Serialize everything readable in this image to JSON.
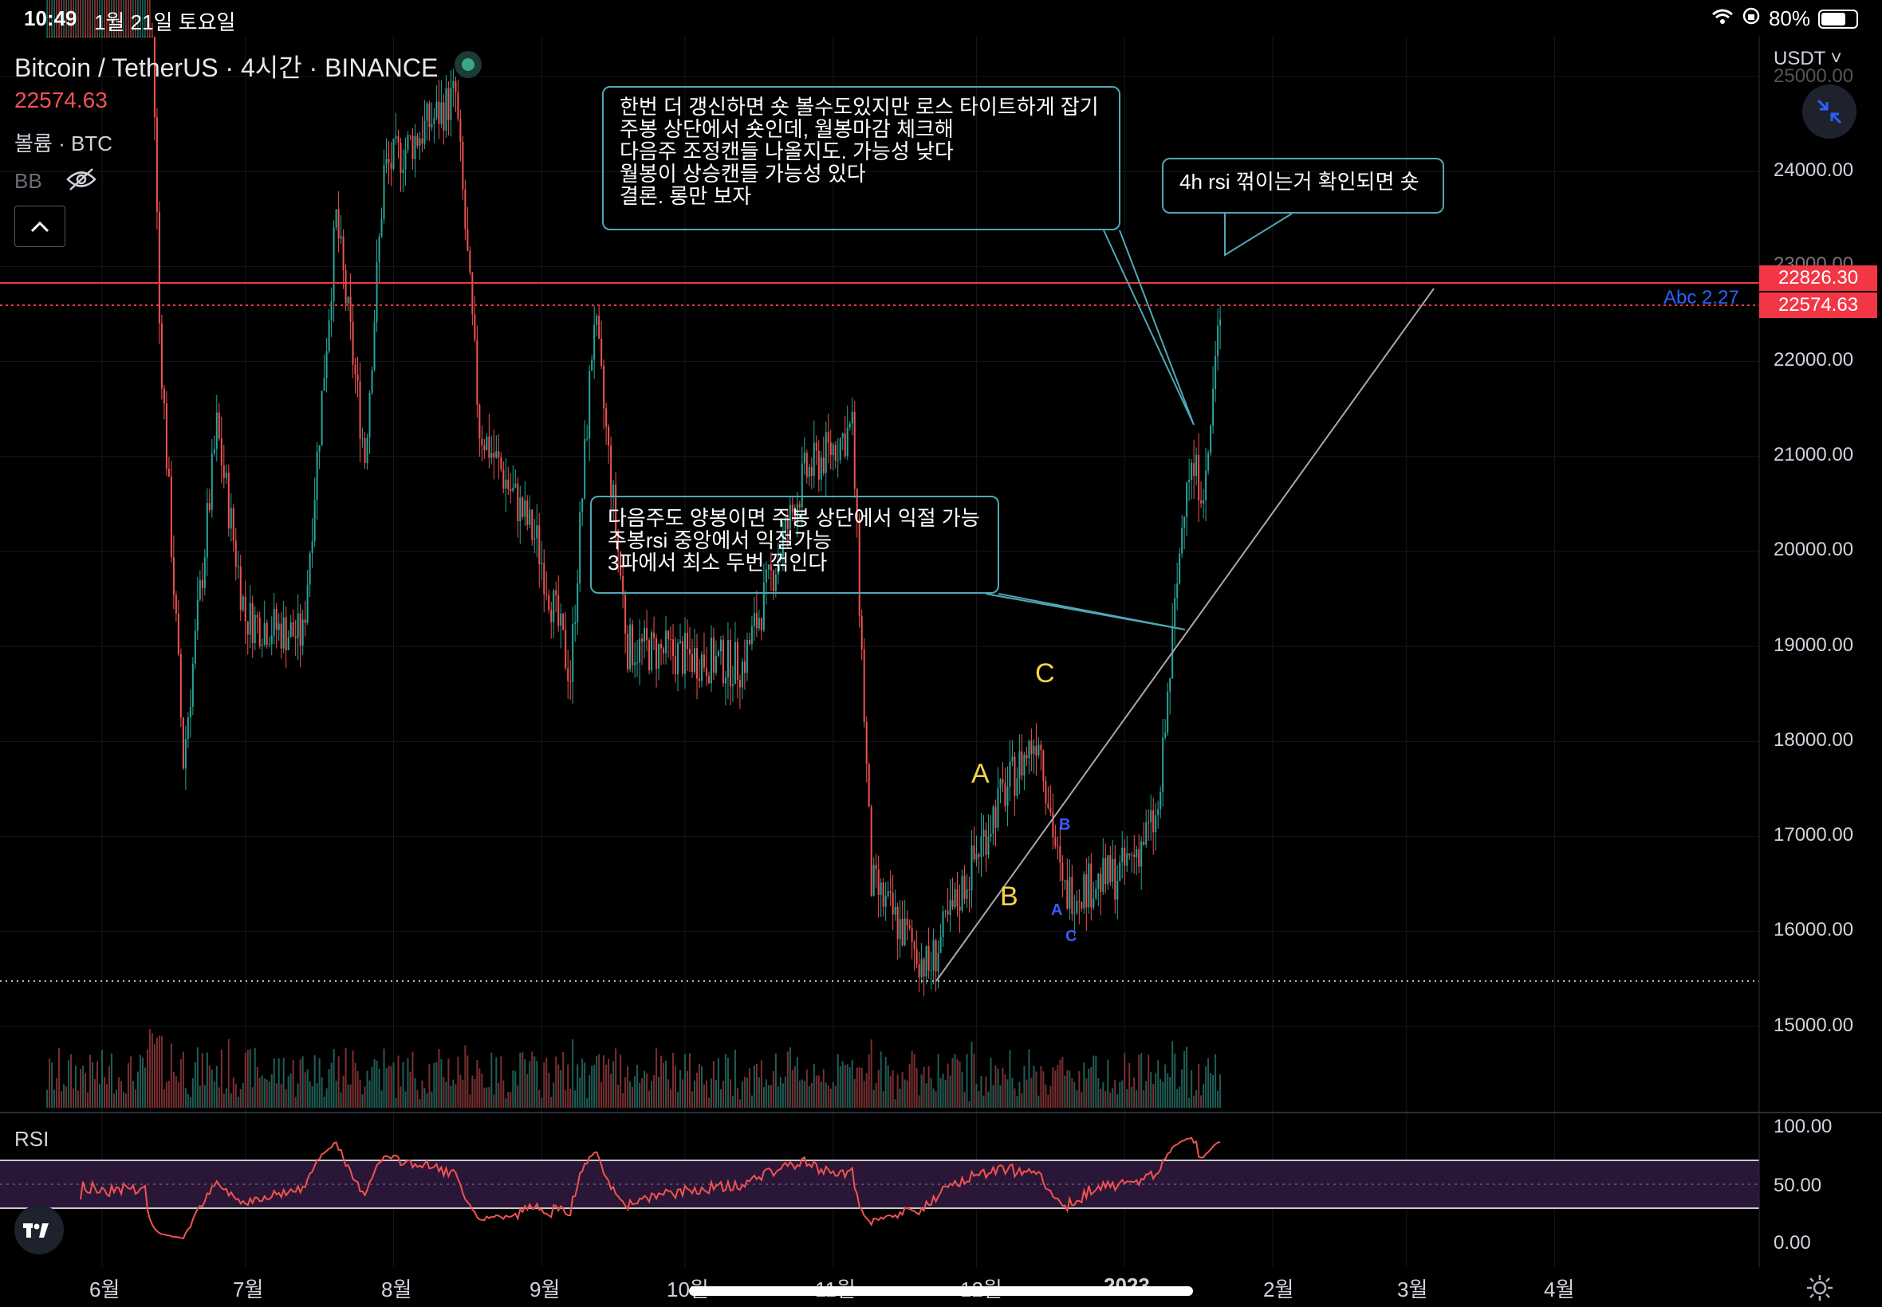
{
  "status_bar": {
    "time": "10:49",
    "date": "1월 21일 토요일",
    "battery": "80%",
    "battery_level": 0.8
  },
  "legend": {
    "symbol": "Bitcoin / TetherUS · 4시간 · BINANCE",
    "last_price": "22574.63",
    "volume_indicator": "볼륨 · BTC",
    "bb_indicator": "BB"
  },
  "header": {
    "currency": "USDT"
  },
  "price_axis": {
    "ticks": [
      "25000.00",
      "24000.00",
      "23000.00",
      "22000.00",
      "21000.00",
      "20000.00",
      "19000.00",
      "18000.00",
      "17000.00",
      "16000.00",
      "15000.00"
    ],
    "tag_high": "22826.30",
    "tag_last": "22574.63",
    "abc_label": "Abc 2.27"
  },
  "notes": [
    {
      "lines": [
        "한번 더 갱신하면 숏 볼수도있지만 로스 타이트하게 잡기",
        "주봉 상단에서 숏인데, 월봉마감 체크해",
        "다음주 조정캔들 나올지도. 가능성 낮다",
        "월봉이 상승캔들 가능성 있다",
        "결론. 롱만 보자"
      ]
    },
    {
      "lines": [
        "4h rsi 꺾이는거 확인되면 숏"
      ]
    },
    {
      "lines": [
        "다음주도 양봉이면 주봉 상단에서 익절 가능",
        "주봉rsi 중앙에서 익절가능",
        "3파에서 최소 두번 꺾인다"
      ]
    }
  ],
  "waves": {
    "major": [
      "A",
      "B",
      "C"
    ],
    "minor": [
      "B",
      "A",
      "C"
    ]
  },
  "rsi": {
    "label": "RSI",
    "ticks": [
      "100.00",
      "50.00",
      "0.00"
    ]
  },
  "time_axis": {
    "labels": [
      "6월",
      "7월",
      "8월",
      "9월",
      "10월",
      "11월",
      "12월",
      "2023",
      "2월",
      "3월",
      "4월"
    ]
  },
  "colors": {
    "up": "#26a69a",
    "down": "#ef5350",
    "note_border": "#4fa7b6",
    "price_tag": "#f23645",
    "wave_major": "#f5d547",
    "wave_minor": "#3d5afe",
    "rsi_line": "#ef5350",
    "rsi_band": "#2a1636"
  },
  "chart_data": {
    "type": "candlestick",
    "title": "Bitcoin / TetherUS · 4시간 · BINANCE",
    "ylim": [
      14000,
      25500
    ],
    "x_labels": [
      "6월",
      "7월",
      "8월",
      "9월",
      "10월",
      "11월",
      "12월",
      "2023",
      "2월",
      "3월",
      "4월"
    ],
    "price_path": [
      {
        "x": "2022-05-20",
        "y": 29500
      },
      {
        "x": "2022-06-10",
        "y": 29000
      },
      {
        "x": "2022-06-13",
        "y": 22400
      },
      {
        "x": "2022-06-18",
        "y": 17800
      },
      {
        "x": "2022-06-25",
        "y": 21300
      },
      {
        "x": "2022-07-01",
        "y": 19300
      },
      {
        "x": "2022-07-13",
        "y": 19100
      },
      {
        "x": "2022-07-20",
        "y": 23500
      },
      {
        "x": "2022-07-26",
        "y": 21000
      },
      {
        "x": "2022-07-30",
        "y": 24000
      },
      {
        "x": "2022-08-14",
        "y": 24800
      },
      {
        "x": "2022-08-19",
        "y": 21300
      },
      {
        "x": "2022-08-31",
        "y": 20100
      },
      {
        "x": "2022-09-07",
        "y": 18700
      },
      {
        "x": "2022-09-12",
        "y": 22500
      },
      {
        "x": "2022-09-19",
        "y": 19000
      },
      {
        "x": "2022-10-13",
        "y": 18800
      },
      {
        "x": "2022-10-26",
        "y": 20800
      },
      {
        "x": "2022-11-05",
        "y": 21300
      },
      {
        "x": "2022-11-09",
        "y": 16500
      },
      {
        "x": "2022-11-21",
        "y": 15600
      },
      {
        "x": "2022-12-05",
        "y": 17300
      },
      {
        "x": "2022-12-14",
        "y": 18100
      },
      {
        "x": "2022-12-19",
        "y": 16400
      },
      {
        "x": "2022-12-31",
        "y": 16600
      },
      {
        "x": "2023-01-08",
        "y": 17200
      },
      {
        "x": "2023-01-14",
        "y": 20900
      },
      {
        "x": "2023-01-18",
        "y": 20700
      },
      {
        "x": "2023-01-21",
        "y": 22574.63
      }
    ],
    "horizontal_lines": [
      {
        "price": 22826.3,
        "style": "solid"
      },
      {
        "price": 22574.63,
        "style": "dotted"
      },
      {
        "price": 15480,
        "style": "dotted"
      }
    ],
    "trendline": {
      "from": {
        "x": "2022-11-21",
        "y": 15480
      },
      "to": {
        "x": "2023-02-08",
        "y": 22800
      }
    },
    "rsi_levels": [
      70,
      50,
      30
    ]
  }
}
